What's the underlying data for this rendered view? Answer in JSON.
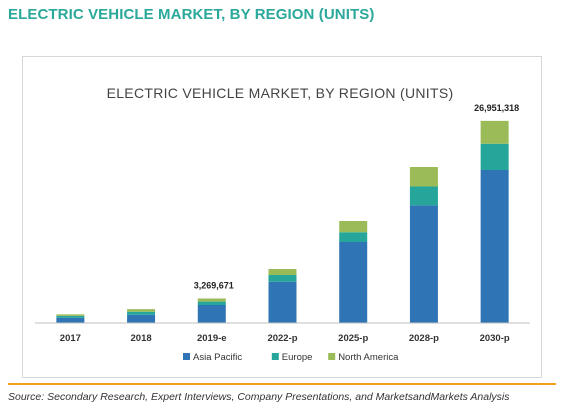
{
  "page": {
    "heading": "ELECTRIC VEHICLE MARKET, BY REGION (UNITS)",
    "source": "Source: Secondary Research, Expert Interviews, Company Presentations, and MarketsandMarkets Analysis"
  },
  "colors": {
    "heading": "#2aa89a",
    "asia_pacific": "#2f74b5",
    "europe": "#26a69a",
    "north_america": "#9bbb59",
    "source_rule": "#f0a21f"
  },
  "chart_data": {
    "type": "bar",
    "stacked": true,
    "title": "ELECTRIC VEHICLE MARKET, BY REGION (UNITS)",
    "xlabel": "",
    "ylabel": "",
    "categories": [
      "2017",
      "2018",
      "2019-e",
      "2022-p",
      "2025-p",
      "2028-p",
      "2030-p"
    ],
    "series": [
      {
        "name": "Asia Pacific",
        "values": [
          700000,
          1100000,
          2400000,
          5500000,
          10800000,
          15700000,
          20400000
        ]
      },
      {
        "name": "Europe",
        "values": [
          250000,
          400000,
          450000,
          900000,
          1300000,
          2500000,
          3500000
        ]
      },
      {
        "name": "North America",
        "values": [
          200000,
          350000,
          420000,
          800000,
          1500000,
          2600000,
          3051318
        ]
      }
    ],
    "totals_labels": [
      {
        "category": "2019-e",
        "label": "3,269,671"
      },
      {
        "category": "2030-p",
        "label": "26,951,318"
      }
    ],
    "ylim": [
      0,
      28000000
    ],
    "grid": false,
    "legend": "bottom"
  }
}
